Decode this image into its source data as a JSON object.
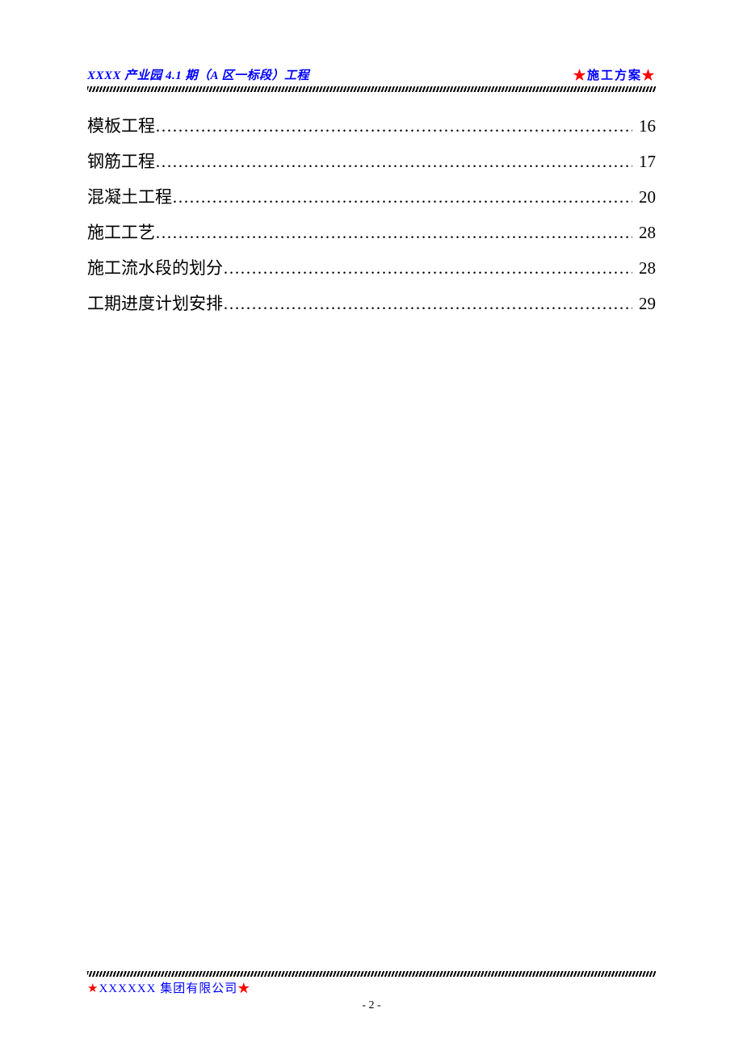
{
  "header": {
    "left": "XXXX 产业园 4.1 期（A 区一标段）工程",
    "right": "施工方案"
  },
  "toc": [
    {
      "title": "模板工程",
      "page": "16"
    },
    {
      "title": "钢筋工程",
      "page": "17"
    },
    {
      "title": "混凝土工程",
      "page": "20"
    },
    {
      "title": "施工工艺",
      "page": "28"
    },
    {
      "title": "施工流水段的划分",
      "page": "28"
    },
    {
      "title": "工期进度计划安排",
      "page": "29"
    }
  ],
  "footer": {
    "company": "XXXXXX 集团有限公司"
  },
  "pageNumber": "- 2 -",
  "colors": {
    "header_text": "#0000ff",
    "star": "#ff0000",
    "body_text": "#000000",
    "background": "#ffffff"
  },
  "typography": {
    "header_fontsize": 15,
    "toc_fontsize": 21,
    "footer_fontsize": 15,
    "pagenum_fontsize": 14
  }
}
